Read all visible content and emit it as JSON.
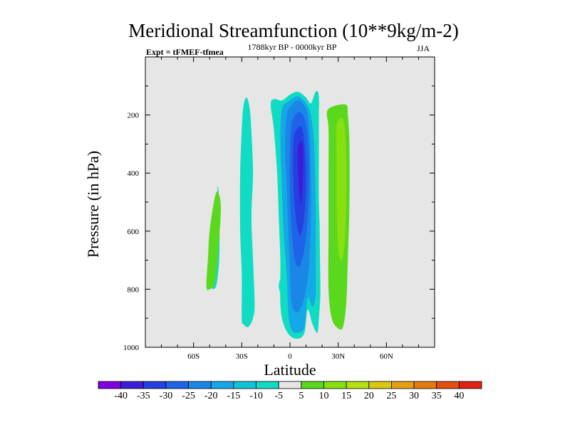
{
  "chart_data": {
    "type": "contour",
    "title": "Meridional Streamfunction (10**9kg/m-2)",
    "subtitle_left": "Expt = tFMEF-tfmea",
    "subtitle_center": "1788kyr BP - 0000kyr BP",
    "subtitle_right": "JJA",
    "xlabel": "Latitude",
    "ylabel": "Pressure (in hPa)",
    "xlim": [
      -90,
      90
    ],
    "ylim": [
      1000,
      0
    ],
    "x_ticks": [
      {
        "value": -60,
        "label": "60S"
      },
      {
        "value": -30,
        "label": "30S"
      },
      {
        "value": 0,
        "label": "0"
      },
      {
        "value": 30,
        "label": "30N"
      },
      {
        "value": 60,
        "label": "60N"
      }
    ],
    "y_ticks": [
      {
        "value": 200,
        "label": "200"
      },
      {
        "value": 400,
        "label": "400"
      },
      {
        "value": 600,
        "label": "600"
      },
      {
        "value": 800,
        "label": "800"
      },
      {
        "value": 1000,
        "label": "1000"
      }
    ],
    "background_color": "#e6e6e6",
    "colorbar": {
      "levels": [
        "-40",
        "-35",
        "-30",
        "-25",
        "-20",
        "-15",
        "-10",
        "-5",
        "5",
        "10",
        "15",
        "20",
        "25",
        "30",
        "35",
        "40"
      ],
      "colors": [
        "#8000e0",
        "#3c1cd6",
        "#2440e0",
        "#1e64e8",
        "#1a86e6",
        "#14a8e6",
        "#10c4d8",
        "#10dcc4",
        "#e6e6e6",
        "#5ad81e",
        "#88e010",
        "#b4e010",
        "#d8c810",
        "#e4a010",
        "#e47a10",
        "#e44e10",
        "#e02010"
      ]
    },
    "regions": [
      {
        "level": "-5 to 5 neg",
        "color": "#10dcc4",
        "points": [
          [
            -49,
            780
          ],
          [
            -46,
            650
          ],
          [
            -45,
            450
          ],
          [
            -44,
            520
          ],
          [
            -44,
            690
          ],
          [
            -46,
            790
          ]
        ]
      },
      {
        "level": "5 to 10",
        "color": "#5ad81e",
        "points": [
          [
            -52,
            790
          ],
          [
            -51,
            690
          ],
          [
            -50,
            600
          ],
          [
            -47,
            490
          ],
          [
            -45,
            465
          ],
          [
            -43,
            520
          ],
          [
            -45,
            690
          ],
          [
            -47,
            780
          ],
          [
            -50,
            800
          ]
        ]
      },
      {
        "level": "-10 to -5",
        "color": "#10dcc4",
        "points": [
          [
            -30,
            900
          ],
          [
            -30,
            750
          ],
          [
            -31,
            600
          ],
          [
            -31,
            400
          ],
          [
            -30,
            250
          ],
          [
            -29,
            170
          ],
          [
            -27,
            140
          ],
          [
            -25,
            180
          ],
          [
            -24,
            260
          ],
          [
            -23,
            400
          ],
          [
            -24,
            550
          ],
          [
            -23,
            700
          ],
          [
            -22,
            850
          ],
          [
            -23,
            900
          ],
          [
            -26,
            930
          ],
          [
            -29,
            920
          ]
        ]
      },
      {
        "level": "-10 to -5 small",
        "color": "#10dcc4",
        "points": [
          [
            -7,
            790
          ],
          [
            -6,
            765
          ],
          [
            -5,
            790
          ],
          [
            -6,
            810
          ]
        ]
      },
      {
        "level": "-10 to -5 main",
        "color": "#10dcc4",
        "points": [
          [
            -12,
            165
          ],
          [
            -10,
            145
          ],
          [
            -5,
            150
          ],
          [
            0,
            130
          ],
          [
            5,
            120
          ],
          [
            10,
            140
          ],
          [
            13,
            160
          ],
          [
            16,
            120
          ],
          [
            18,
            140
          ],
          [
            18,
            300
          ],
          [
            18,
            500
          ],
          [
            19,
            650
          ],
          [
            19,
            800
          ],
          [
            18,
            900
          ],
          [
            17,
            950
          ],
          [
            14,
            920
          ],
          [
            11,
            870
          ],
          [
            9,
            950
          ],
          [
            5,
            970
          ],
          [
            0,
            960
          ],
          [
            -4,
            920
          ],
          [
            -6,
            850
          ],
          [
            -6,
            700
          ],
          [
            -7,
            550
          ],
          [
            -8,
            400
          ],
          [
            -10,
            250
          ]
        ]
      },
      {
        "level": "-15 to -10",
        "color": "#14a8e6",
        "points": [
          [
            -5,
            180
          ],
          [
            0,
            150
          ],
          [
            5,
            135
          ],
          [
            10,
            160
          ],
          [
            13,
            200
          ],
          [
            15,
            300
          ],
          [
            16,
            500
          ],
          [
            16,
            700
          ],
          [
            16,
            820
          ],
          [
            14,
            860
          ],
          [
            11,
            830
          ],
          [
            9,
            930
          ],
          [
            5,
            950
          ],
          [
            1,
            940
          ],
          [
            -1,
            880
          ],
          [
            -2,
            750
          ],
          [
            -4,
            600
          ],
          [
            -5,
            450
          ],
          [
            -6,
            300
          ]
        ]
      },
      {
        "level": "-20 to -15",
        "color": "#1a86e6",
        "points": [
          [
            -2,
            200
          ],
          [
            2,
            160
          ],
          [
            6,
            150
          ],
          [
            10,
            180
          ],
          [
            12,
            250
          ],
          [
            13,
            400
          ],
          [
            13,
            550
          ],
          [
            12,
            700
          ],
          [
            10,
            800
          ],
          [
            7,
            860
          ],
          [
            4,
            880
          ],
          [
            1,
            850
          ],
          [
            0,
            750
          ],
          [
            -1,
            600
          ],
          [
            -2,
            450
          ],
          [
            -3,
            320
          ]
        ]
      },
      {
        "level": "-25 to -20",
        "color": "#1e64e8",
        "points": [
          [
            1,
            230
          ],
          [
            5,
            190
          ],
          [
            9,
            210
          ],
          [
            11,
            280
          ],
          [
            12,
            400
          ],
          [
            11,
            550
          ],
          [
            9,
            660
          ],
          [
            6,
            720
          ],
          [
            3,
            700
          ],
          [
            1,
            600
          ],
          [
            0,
            450
          ],
          [
            0,
            330
          ]
        ]
      },
      {
        "level": "-30 to -25",
        "color": "#2440e0",
        "points": [
          [
            3,
            260
          ],
          [
            7,
            240
          ],
          [
            9,
            300
          ],
          [
            10,
            420
          ],
          [
            9,
            540
          ],
          [
            7,
            610
          ],
          [
            5,
            600
          ],
          [
            3,
            520
          ],
          [
            2,
            400
          ],
          [
            2,
            310
          ]
        ]
      },
      {
        "level": "-35 to -30",
        "color": "#3c1cd6",
        "points": [
          [
            5,
            310
          ],
          [
            8,
            300
          ],
          [
            8,
            430
          ],
          [
            7,
            500
          ],
          [
            6,
            480
          ],
          [
            5,
            400
          ]
        ]
      },
      {
        "level": "5 to 10 north",
        "color": "#5ad81e",
        "points": [
          [
            23,
            190
          ],
          [
            27,
            170
          ],
          [
            35,
            165
          ],
          [
            36,
            200
          ],
          [
            37,
            300
          ],
          [
            37,
            500
          ],
          [
            36,
            700
          ],
          [
            35,
            850
          ],
          [
            33,
            930
          ],
          [
            30,
            935
          ],
          [
            26,
            900
          ],
          [
            24,
            800
          ],
          [
            24,
            600
          ],
          [
            24,
            400
          ],
          [
            24,
            250
          ]
        ]
      },
      {
        "level": "10 to 15 north",
        "color": "#88e010",
        "points": [
          [
            29,
            240
          ],
          [
            32,
            210
          ],
          [
            34,
            240
          ],
          [
            35,
            350
          ],
          [
            35,
            500
          ],
          [
            34,
            640
          ],
          [
            32,
            700
          ],
          [
            30,
            660
          ],
          [
            29,
            500
          ],
          [
            29,
            350
          ]
        ]
      },
      {
        "level": "-5 to 5 band",
        "color": "#e6e6e6",
        "points": [
          [
            18,
            200
          ],
          [
            20,
            170
          ],
          [
            22,
            200
          ],
          [
            22,
            600
          ],
          [
            21,
            800
          ],
          [
            20,
            870
          ],
          [
            19,
            820
          ]
        ]
      }
    ]
  }
}
